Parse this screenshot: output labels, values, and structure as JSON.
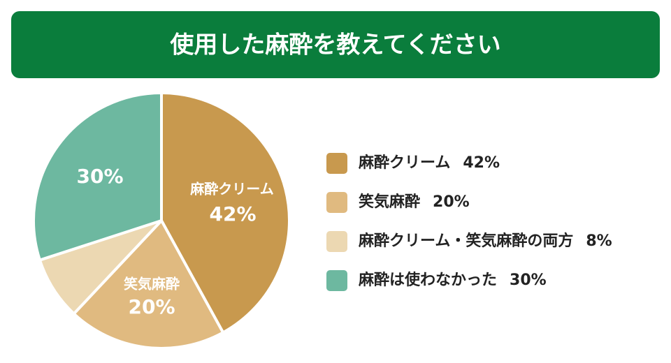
{
  "chart_data": {
    "type": "pie",
    "title": "使用した麻酔を教えてください",
    "categories": [
      "麻酔クリーム",
      "笑気麻酔",
      "麻酔クリーム・笑気麻酔の両方",
      "麻酔は使わなかった"
    ],
    "values": [
      42,
      20,
      8,
      30
    ],
    "value_labels": [
      "42%",
      "20%",
      "8%",
      "30%"
    ],
    "colors": [
      "#c8994e",
      "#e0ba80",
      "#ecd8b2",
      "#6db8a0"
    ],
    "title_color": "#0a7d3c"
  }
}
